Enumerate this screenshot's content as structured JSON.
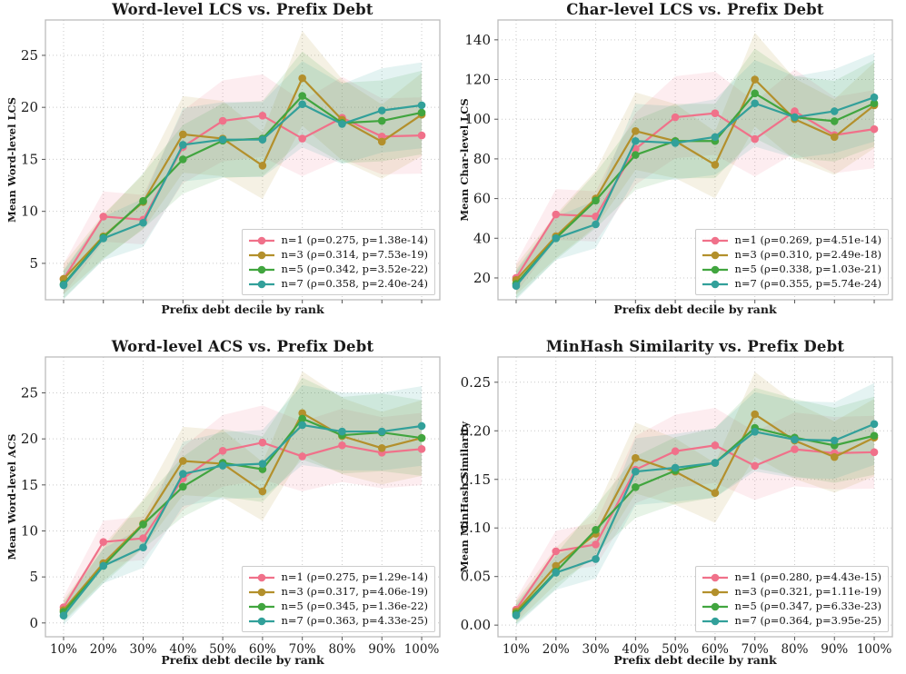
{
  "figure": {
    "x_tick_labels": [
      "10%",
      "20%",
      "30%",
      "40%",
      "50%",
      "60%",
      "70%",
      "80%",
      "90%",
      "100%"
    ],
    "xlabel": "Prefix debt decile by rank"
  },
  "style": {
    "background": "#ffffff",
    "grid_color": "#c9c9c9",
    "spine_color": "#bcbcbc",
    "tick_color": "#555555",
    "text_color": "#1a1a1a",
    "band_opacity": 0.13,
    "series_colors": {
      "n1": "#f0718a",
      "n3": "#b3902c",
      "n5": "#41a53f",
      "n7": "#32a09a"
    }
  },
  "chart_data": [
    {
      "id": "word-level-lcs",
      "type": "line",
      "title": "Word-level LCS vs. Prefix Debt",
      "xlabel": "Prefix debt decile by rank",
      "ylabel": "Mean Word-level LCS",
      "x_categories": [
        "10%",
        "20%",
        "30%",
        "40%",
        "50%",
        "60%",
        "70%",
        "80%",
        "90%",
        "100%"
      ],
      "show_x_tick_labels": false,
      "grid": true,
      "legend_position": "lower right",
      "ylim": [
        1.5,
        28.4
      ],
      "yticks": [
        {
          "v": 5,
          "label": "5"
        },
        {
          "v": 10,
          "label": "10"
        },
        {
          "v": 15,
          "label": "15"
        },
        {
          "v": 20,
          "label": "20"
        },
        {
          "v": 25,
          "label": "25"
        }
      ],
      "band": {
        "pct": 0.16,
        "abs": 0.9
      },
      "series": [
        {
          "name": "n=1",
          "label": "n=1 (ρ=0.275, p=1.38e-14)",
          "color": "#f0718a",
          "values": [
            3.5,
            9.5,
            9.2,
            16.2,
            18.7,
            19.2,
            17.0,
            19.0,
            17.2,
            17.3
          ]
        },
        {
          "name": "n=3",
          "label": "n=3 (ρ=0.314, p=7.53e-19)",
          "color": "#b3902c",
          "values": [
            3.5,
            7.6,
            10.9,
            17.4,
            17.0,
            14.4,
            22.8,
            18.8,
            16.7,
            19.3
          ]
        },
        {
          "name": "n=5",
          "label": "n=5 (ρ=0.342, p=3.52e-22)",
          "color": "#41a53f",
          "values": [
            3.0,
            7.5,
            11.0,
            15.0,
            16.8,
            17.0,
            21.1,
            18.5,
            18.7,
            19.5
          ]
        },
        {
          "name": "n=7",
          "label": "n=7 (ρ=0.358, p=2.40e-24)",
          "color": "#32a09a",
          "values": [
            2.9,
            7.4,
            8.9,
            16.4,
            16.9,
            16.9,
            20.3,
            18.4,
            19.7,
            20.2
          ]
        }
      ]
    },
    {
      "id": "char-level-lcs",
      "type": "line",
      "title": "Char-level LCS vs. Prefix Debt",
      "xlabel": "Prefix debt decile by rank",
      "ylabel": "Mean Char-level LCS",
      "x_categories": [
        "10%",
        "20%",
        "30%",
        "40%",
        "50%",
        "60%",
        "70%",
        "80%",
        "90%",
        "100%"
      ],
      "show_x_tick_labels": false,
      "grid": true,
      "legend_position": "lower right",
      "ylim": [
        9,
        150
      ],
      "yticks": [
        {
          "v": 20,
          "label": "20"
        },
        {
          "v": 40,
          "label": "40"
        },
        {
          "v": 60,
          "label": "60"
        },
        {
          "v": 80,
          "label": "80"
        },
        {
          "v": 100,
          "label": "100"
        },
        {
          "v": 120,
          "label": "120"
        },
        {
          "v": 140,
          "label": "140"
        }
      ],
      "band": {
        "pct": 0.16,
        "abs": 4.5
      },
      "series": [
        {
          "name": "n=1",
          "label": "n=1 (ρ=0.269, p=4.51e-14)",
          "color": "#f0718a",
          "values": [
            20,
            52,
            51,
            85,
            101,
            103,
            90,
            104,
            92,
            95
          ]
        },
        {
          "name": "n=3",
          "label": "n=3 (ρ=0.310, p=2.49e-18)",
          "color": "#b3902c",
          "values": [
            19,
            41,
            60,
            94,
            89,
            77,
            120,
            100,
            91,
            107
          ]
        },
        {
          "name": "n=5",
          "label": "n=5 (ρ=0.338, p=1.03e-21)",
          "color": "#41a53f",
          "values": [
            17,
            40,
            59,
            82,
            89,
            89,
            113,
            101,
            99,
            108
          ]
        },
        {
          "name": "n=7",
          "label": "n=7 (ρ=0.355, p=5.74e-24)",
          "color": "#32a09a",
          "values": [
            16,
            40,
            47,
            89,
            88,
            91,
            108,
            101,
            104,
            111
          ]
        }
      ]
    },
    {
      "id": "word-level-acs",
      "type": "line",
      "title": "Word-level ACS vs. Prefix Debt",
      "xlabel": "Prefix debt decile by rank",
      "ylabel": "Mean Word-level ACS",
      "x_categories": [
        "10%",
        "20%",
        "30%",
        "40%",
        "50%",
        "60%",
        "70%",
        "80%",
        "90%",
        "100%"
      ],
      "show_x_tick_labels": true,
      "grid": true,
      "legend_position": "lower right",
      "ylim": [
        -1.5,
        28.9
      ],
      "yticks": [
        {
          "v": 0,
          "label": "0"
        },
        {
          "v": 5,
          "label": "5"
        },
        {
          "v": 10,
          "label": "10"
        },
        {
          "v": 15,
          "label": "15"
        },
        {
          "v": 20,
          "label": "20"
        },
        {
          "v": 25,
          "label": "25"
        }
      ],
      "band": {
        "pct": 0.16,
        "abs": 0.9
      },
      "series": [
        {
          "name": "n=1",
          "label": "n=1 (ρ=0.275, p=1.29e-14)",
          "color": "#f0718a",
          "values": [
            1.7,
            8.8,
            9.2,
            15.7,
            18.7,
            19.6,
            18.1,
            19.3,
            18.5,
            18.9
          ]
        },
        {
          "name": "n=3",
          "label": "n=3 (ρ=0.317, p=4.06e-19)",
          "color": "#b3902c",
          "values": [
            1.4,
            6.5,
            10.8,
            17.6,
            17.3,
            14.3,
            22.8,
            20.3,
            19.0,
            20.1
          ]
        },
        {
          "name": "n=5",
          "label": "n=5 (ρ=0.345, p=1.36e-22)",
          "color": "#41a53f",
          "values": [
            1.2,
            6.2,
            10.7,
            14.8,
            17.4,
            16.7,
            22.2,
            20.4,
            20.7,
            20.1
          ]
        },
        {
          "name": "n=7",
          "label": "n=7 (ρ=0.363, p=4.33e-25)",
          "color": "#32a09a",
          "values": [
            0.8,
            6.2,
            8.2,
            16.2,
            17.1,
            17.3,
            21.5,
            20.8,
            20.8,
            21.4
          ]
        }
      ]
    },
    {
      "id": "minhash-similarity",
      "type": "line",
      "title": "MinHash Similarity vs. Prefix Debt",
      "xlabel": "Prefix debt decile by rank",
      "ylabel": "Mean MinHash Similarity",
      "x_categories": [
        "10%",
        "20%",
        "30%",
        "40%",
        "50%",
        "60%",
        "70%",
        "80%",
        "90%",
        "100%"
      ],
      "show_x_tick_labels": true,
      "grid": true,
      "legend_position": "lower right",
      "ylim": [
        -0.012,
        0.276
      ],
      "yticks": [
        {
          "v": 0.0,
          "label": "0.00"
        },
        {
          "v": 0.05,
          "label": "0.05"
        },
        {
          "v": 0.1,
          "label": "0.10"
        },
        {
          "v": 0.15,
          "label": "0.15"
        },
        {
          "v": 0.2,
          "label": "0.20"
        },
        {
          "v": 0.25,
          "label": "0.25"
        }
      ],
      "band": {
        "pct": 0.16,
        "abs": 0.009
      },
      "series": [
        {
          "name": "n=1",
          "label": "n=1 (ρ=0.280, p=4.43e-15)",
          "color": "#f0718a",
          "values": [
            0.016,
            0.076,
            0.083,
            0.16,
            0.179,
            0.185,
            0.164,
            0.181,
            0.177,
            0.178
          ]
        },
        {
          "name": "n=3",
          "label": "n=3 (ρ=0.321, p=1.11e-19)",
          "color": "#b3902c",
          "values": [
            0.014,
            0.061,
            0.094,
            0.172,
            0.158,
            0.136,
            0.217,
            0.19,
            0.173,
            0.193
          ]
        },
        {
          "name": "n=5",
          "label": "n=5 (ρ=0.347, p=6.33e-23)",
          "color": "#41a53f",
          "values": [
            0.012,
            0.055,
            0.098,
            0.142,
            0.159,
            0.167,
            0.203,
            0.193,
            0.185,
            0.195
          ]
        },
        {
          "name": "n=7",
          "label": "n=7 (ρ=0.364, p=3.95e-25)",
          "color": "#32a09a",
          "values": [
            0.01,
            0.054,
            0.068,
            0.158,
            0.162,
            0.167,
            0.199,
            0.191,
            0.19,
            0.207
          ]
        }
      ]
    }
  ]
}
